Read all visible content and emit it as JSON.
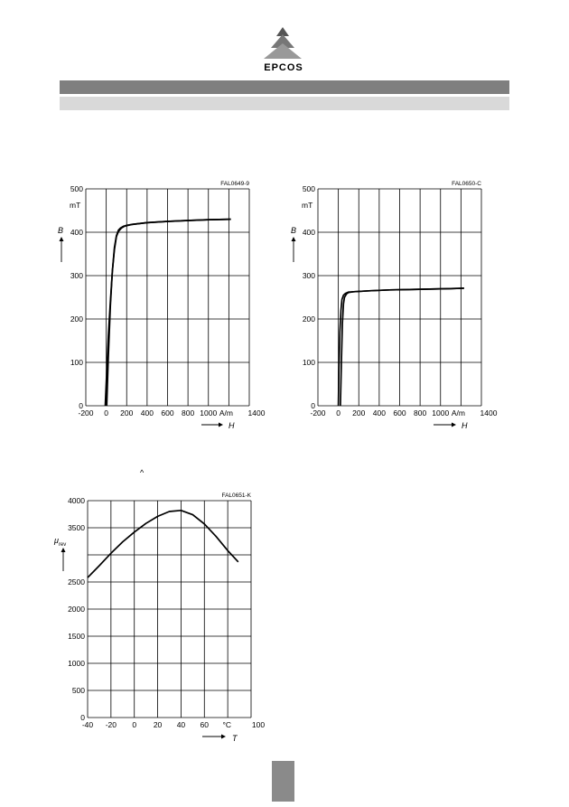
{
  "header": {
    "logo_text": "EPCOS"
  },
  "page_marks": {
    "caret_mark": "^"
  },
  "chart_data": [
    {
      "type": "line",
      "figure_id": "FAL0649-9",
      "xlabel": "H",
      "x_unit": "A/m",
      "ylabel": "B",
      "y_unit": "mT",
      "xlim": [
        -200,
        1400
      ],
      "ylim": [
        0,
        500
      ],
      "x_ticks": [
        "-200",
        "0",
        "200",
        "400",
        "600",
        "800",
        "1000",
        "1400"
      ],
      "y_ticks": [
        "0",
        "100",
        "200",
        "300",
        "400",
        "500"
      ],
      "grid": true,
      "series": [
        {
          "x": [
            -10,
            5,
            20,
            40,
            60,
            80,
            100,
            120,
            150,
            180,
            250,
            400,
            600,
            800,
            1000,
            1220
          ],
          "y": [
            0,
            80,
            160,
            240,
            310,
            360,
            390,
            402,
            410,
            414,
            418,
            422,
            425,
            427,
            429,
            430
          ]
        },
        {
          "x": [
            1220,
            1000,
            800,
            600,
            400,
            250,
            200,
            170,
            140,
            120,
            100,
            80,
            60,
            40,
            20,
            5
          ],
          "y": [
            430,
            429,
            427,
            425,
            422,
            418,
            416,
            414,
            410,
            405,
            392,
            365,
            310,
            230,
            110,
            0
          ]
        }
      ]
    },
    {
      "type": "line",
      "figure_id": "FAL0650-C",
      "xlabel": "H",
      "x_unit": "A/m",
      "ylabel": "B",
      "y_unit": "mT",
      "xlim": [
        -200,
        1400
      ],
      "ylim": [
        0,
        500
      ],
      "x_ticks": [
        "-200",
        "0",
        "200",
        "400",
        "600",
        "800",
        "1000",
        "1400"
      ],
      "y_ticks": [
        "0",
        "100",
        "200",
        "300",
        "400",
        "500"
      ],
      "grid": true,
      "series": [
        {
          "x": [
            0,
            5,
            15,
            25,
            35,
            50,
            70,
            100,
            150,
            300,
            500,
            700,
            900,
            1100,
            1230
          ],
          "y": [
            0,
            80,
            170,
            220,
            245,
            255,
            259,
            262,
            263,
            265,
            267,
            268,
            269,
            270,
            271
          ]
        },
        {
          "x": [
            1230,
            1100,
            900,
            700,
            500,
            300,
            150,
            100,
            80,
            60,
            50,
            40,
            30,
            20
          ],
          "y": [
            271,
            270,
            269,
            268,
            267,
            265,
            263,
            261,
            258,
            250,
            235,
            190,
            100,
            0
          ]
        }
      ]
    },
    {
      "type": "line",
      "figure_id": "FAL0651-K",
      "xlabel": "T",
      "x_unit": "°C",
      "ylabel": "μ",
      "ylabel_sub": "rev",
      "xlim": [
        -40,
        100
      ],
      "ylim": [
        0,
        4000
      ],
      "x_ticks": [
        "-40",
        "-20",
        "0",
        "20",
        "40",
        "60",
        "100"
      ],
      "y_ticks": [
        "0",
        "500",
        "1000",
        "1500",
        "2000",
        "2500",
        "3500",
        "4000"
      ],
      "grid": true,
      "series": [
        {
          "x": [
            -40,
            -30,
            -20,
            -10,
            0,
            10,
            20,
            30,
            40,
            50,
            60,
            70,
            80,
            89
          ],
          "y": [
            2580,
            2800,
            3030,
            3240,
            3420,
            3580,
            3710,
            3800,
            3820,
            3740,
            3570,
            3340,
            3080,
            2870
          ]
        }
      ]
    }
  ]
}
